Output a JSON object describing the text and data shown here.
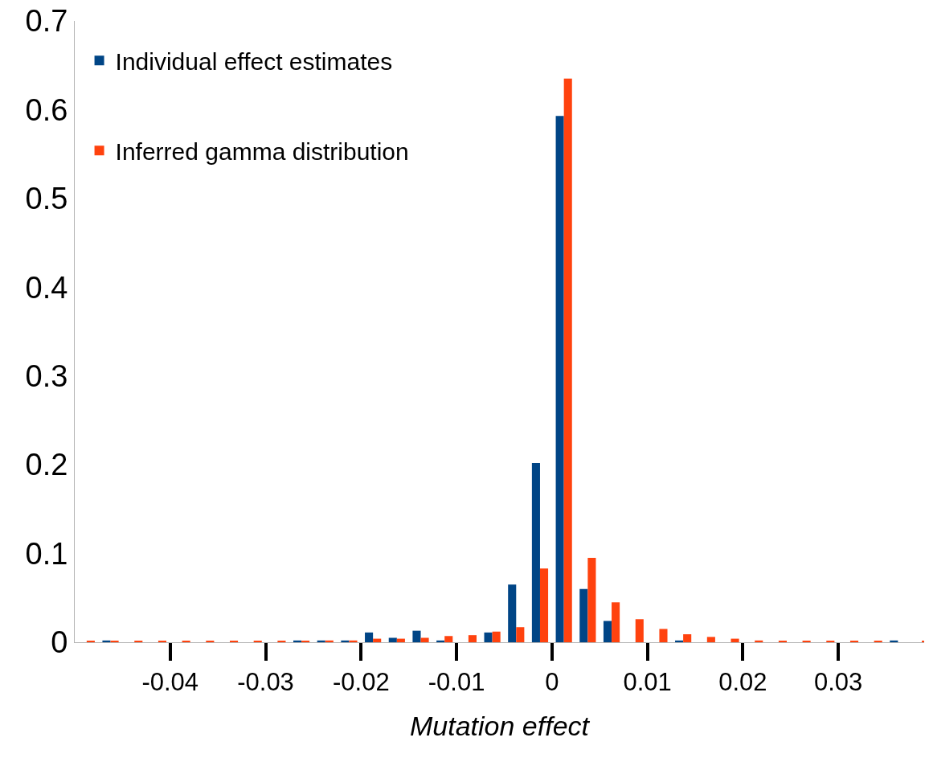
{
  "chart_data": {
    "type": "bar",
    "xlabel": "Mutation effect",
    "x": [
      -0.04875,
      -0.04625,
      -0.04375,
      -0.04125,
      -0.03875,
      -0.03625,
      -0.03375,
      -0.03125,
      -0.02875,
      -0.02625,
      -0.02375,
      -0.02125,
      -0.01875,
      -0.01625,
      -0.01375,
      -0.01125,
      -0.00875,
      -0.00625,
      -0.00375,
      -0.00125,
      0.00125,
      0.00375,
      0.00625,
      0.00875,
      0.01125,
      0.01375,
      0.01625,
      0.01875,
      0.02125,
      0.02375,
      0.02625,
      0.02875,
      0.03125,
      0.03375,
      0.03625,
      0.03875
    ],
    "series": [
      {
        "name": "Individual effect estimates",
        "color": "#004586",
        "values": [
          null,
          0.002,
          null,
          null,
          null,
          null,
          null,
          null,
          null,
          0.002,
          0.002,
          0.002,
          0.011,
          0.005,
          0.013,
          0.002,
          null,
          0.011,
          0.065,
          0.202,
          0.593,
          0.06,
          0.024,
          null,
          null,
          0.002,
          null,
          null,
          null,
          null,
          null,
          null,
          null,
          null,
          0.002,
          null
        ]
      },
      {
        "name": "Inferred gamma distribution",
        "color": "#ff420e",
        "values": [
          0.001,
          0.001,
          0.001,
          0.001,
          0.001,
          0.001,
          0.001,
          0.001,
          0.001,
          0.001,
          0.002,
          0.002,
          0.004,
          0.004,
          0.005,
          0.007,
          0.008,
          0.012,
          0.017,
          0.083,
          0.635,
          0.095,
          0.045,
          0.026,
          0.015,
          0.009,
          0.006,
          0.004,
          0.002,
          0.001,
          0.001,
          0.001,
          0.001,
          0.001,
          null,
          0.001
        ]
      }
    ],
    "xlim": [
      -0.05,
      0.039
    ],
    "xticks": [
      -0.04,
      -0.03,
      -0.02,
      -0.01,
      0,
      0.01,
      0.02,
      0.03
    ],
    "ylim": [
      0,
      0.7
    ],
    "yticks": [
      0,
      0.1,
      0.2,
      0.3,
      0.4,
      0.5,
      0.6,
      0.7
    ],
    "legend": "top left"
  }
}
